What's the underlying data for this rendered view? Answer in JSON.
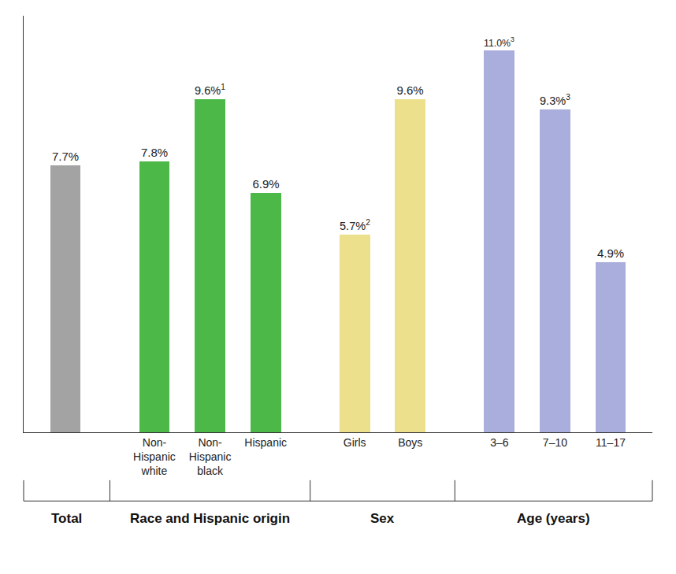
{
  "chart_data": {
    "type": "bar",
    "categories": [
      null,
      "Non-Hispanic white",
      "Non-Hispanic black",
      "Hispanic",
      "Girls",
      "Boys",
      "3–6",
      "7–10",
      "11–17"
    ],
    "values": [
      7.7,
      7.8,
      9.6,
      6.9,
      5.7,
      9.6,
      11.0,
      9.3,
      4.9
    ],
    "value_labels": [
      "7.7%",
      "7.8%",
      "9.6%",
      "6.9%",
      "5.7%",
      "9.6%",
      "11.0%",
      "9.3%",
      "4.9%"
    ],
    "footnotes": [
      null,
      null,
      "1",
      null,
      "2",
      null,
      "3",
      "3",
      null
    ],
    "colors": [
      "#a3a3a3",
      "#4cb848",
      "#4cb848",
      "#4cb848",
      "#ece08c",
      "#ece08c",
      "#aaaedc",
      "#aaaedc",
      "#aaaedc"
    ],
    "groups": [
      {
        "label": "Total",
        "count": 1
      },
      {
        "label": "Race and Hispanic origin",
        "count": 3
      },
      {
        "label": "Sex",
        "count": 2
      },
      {
        "label": "Age (years)",
        "count": 3
      }
    ],
    "ylim": [
      0,
      12
    ],
    "data_labels": true,
    "tick_labels": "x",
    "grid": false
  }
}
